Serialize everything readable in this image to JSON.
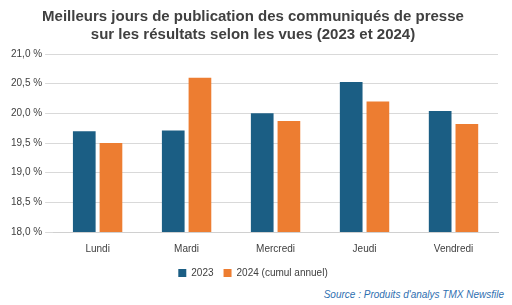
{
  "chart_data": {
    "type": "bar",
    "title": [
      "Meilleurs jours de publication des communiqués de presse",
      "sur les résultats selon les vues (2023 et 2024)"
    ],
    "annotations": [
      "Source : Produits d'analys TMX Newsfile"
    ],
    "categories": [
      "Lundi",
      "Mardi",
      "Mercredi",
      "Jeudi",
      "Vendredi"
    ],
    "series": [
      {
        "name": "2023",
        "color": "#1b5e84",
        "values": [
          19.7,
          19.71,
          20.0,
          20.53,
          20.04
        ]
      },
      {
        "name": "2024 (cumul annuel)",
        "color": "#ed7d31",
        "values": [
          19.5,
          20.6,
          19.87,
          20.2,
          19.82
        ]
      }
    ],
    "ylim": [
      18,
      21
    ],
    "yticks": [
      {
        "value": 18,
        "label": "18,0 %"
      },
      {
        "value": 18.5,
        "label": "18,5 %"
      },
      {
        "value": 19,
        "label": "19,0 %"
      },
      {
        "value": 19.5,
        "label": "19,5 %"
      },
      {
        "value": 20,
        "label": "20,0 %"
      },
      {
        "value": 20.5,
        "label": "20,5 %"
      },
      {
        "value": 21,
        "label": "21,0 %"
      }
    ],
    "grid": true,
    "legend": "bottom"
  }
}
